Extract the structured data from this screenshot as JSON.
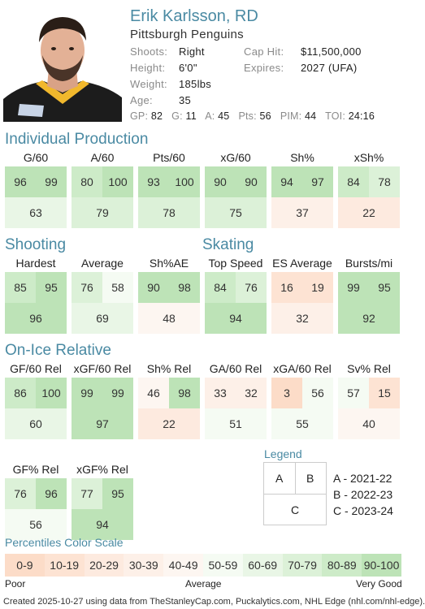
{
  "player": {
    "name": "Erik Karlsson, RD",
    "team": "Pittsburgh Penguins"
  },
  "info": [
    {
      "label": "Shoots:",
      "value": "Right"
    },
    {
      "label": "Height:",
      "value": "6'0\""
    },
    {
      "label": "Weight:",
      "value": "185lbs"
    },
    {
      "label": "Age:",
      "value": "35"
    }
  ],
  "contract": [
    {
      "label": "Cap Hit:",
      "value": "$11,500,000"
    },
    {
      "label": "Expires:",
      "value": "2027 (UFA)"
    }
  ],
  "statline": [
    {
      "label": "GP:",
      "value": "82"
    },
    {
      "label": "G:",
      "value": "11"
    },
    {
      "label": "A:",
      "value": "45"
    },
    {
      "label": "Pts:",
      "value": "56"
    },
    {
      "label": "PIM:",
      "value": "44"
    },
    {
      "label": "TOI:",
      "value": "24:16"
    }
  ],
  "sections": {
    "individual": "Individual Production",
    "shooting": "Shooting",
    "skating": "Skating",
    "onice": "On-Ice Relative"
  },
  "cards": [
    {
      "title": "G/60",
      "a": "96",
      "b": "99",
      "c": "63"
    },
    {
      "title": "A/60",
      "a": "80",
      "b": "100",
      "c": "79"
    },
    {
      "title": "Pts/60",
      "a": "93",
      "b": "100",
      "c": "78"
    },
    {
      "title": "xG/60",
      "a": "90",
      "b": "90",
      "c": "75"
    },
    {
      "title": "Sh%",
      "a": "94",
      "b": "97",
      "c": "37"
    },
    {
      "title": "xSh%",
      "a": "84",
      "b": "78",
      "c": "22"
    },
    {
      "title": "Hardest",
      "a": "85",
      "b": "95",
      "c": "96"
    },
    {
      "title": "Average",
      "a": "76",
      "b": "58",
      "c": "69"
    },
    {
      "title": "Sh%AE",
      "a": "90",
      "b": "98",
      "c": "48"
    },
    {
      "title": "Top Speed",
      "a": "84",
      "b": "76",
      "c": "94"
    },
    {
      "title": "ES Average",
      "a": "16",
      "b": "19",
      "c": "32"
    },
    {
      "title": "Bursts/mi",
      "a": "99",
      "b": "95",
      "c": "92"
    },
    {
      "title": "GF/60 Rel",
      "a": "86",
      "b": "100",
      "c": "60"
    },
    {
      "title": "xGF/60 Rel",
      "a": "99",
      "b": "99",
      "c": "97"
    },
    {
      "title": "Sh% Rel",
      "a": "46",
      "b": "98",
      "c": "22"
    },
    {
      "title": "GA/60 Rel",
      "a": "33",
      "b": "32",
      "c": "51"
    },
    {
      "title": "xGA/60 Rel",
      "a": "3",
      "b": "56",
      "c": "55"
    },
    {
      "title": "Sv% Rel",
      "a": "57",
      "b": "15",
      "c": "40"
    },
    {
      "title": "GF% Rel",
      "a": "76",
      "b": "96",
      "c": "56"
    },
    {
      "title": "xGF% Rel",
      "a": "77",
      "b": "95",
      "c": "94"
    }
  ],
  "legend": {
    "title": "Legend",
    "a": "A",
    "b": "B",
    "c": "C",
    "items": [
      "A - 2021-22",
      "B - 2022-23",
      "C - 2023-24"
    ]
  },
  "scale": {
    "title": "Percentiles Color Scale",
    "bins": [
      "0-9",
      "10-19",
      "20-29",
      "30-39",
      "40-49",
      "50-59",
      "60-69",
      "70-79",
      "80-89",
      "90-100"
    ],
    "colors": [
      "#fcdcc8",
      "#fde3d3",
      "#fdeadf",
      "#fdf0e8",
      "#fdf6f1",
      "#f5fbf3",
      "#e9f6e6",
      "#dcf1d8",
      "#cdebc8",
      "#bde3b7"
    ],
    "poor": "Poor",
    "average": "Average",
    "very_good": "Very Good"
  },
  "footer": "Created 2025-10-27 using data from TheStanleyCap.com, Puckalytics.com, NHL Edge (nhl.com/nhl-edge)."
}
